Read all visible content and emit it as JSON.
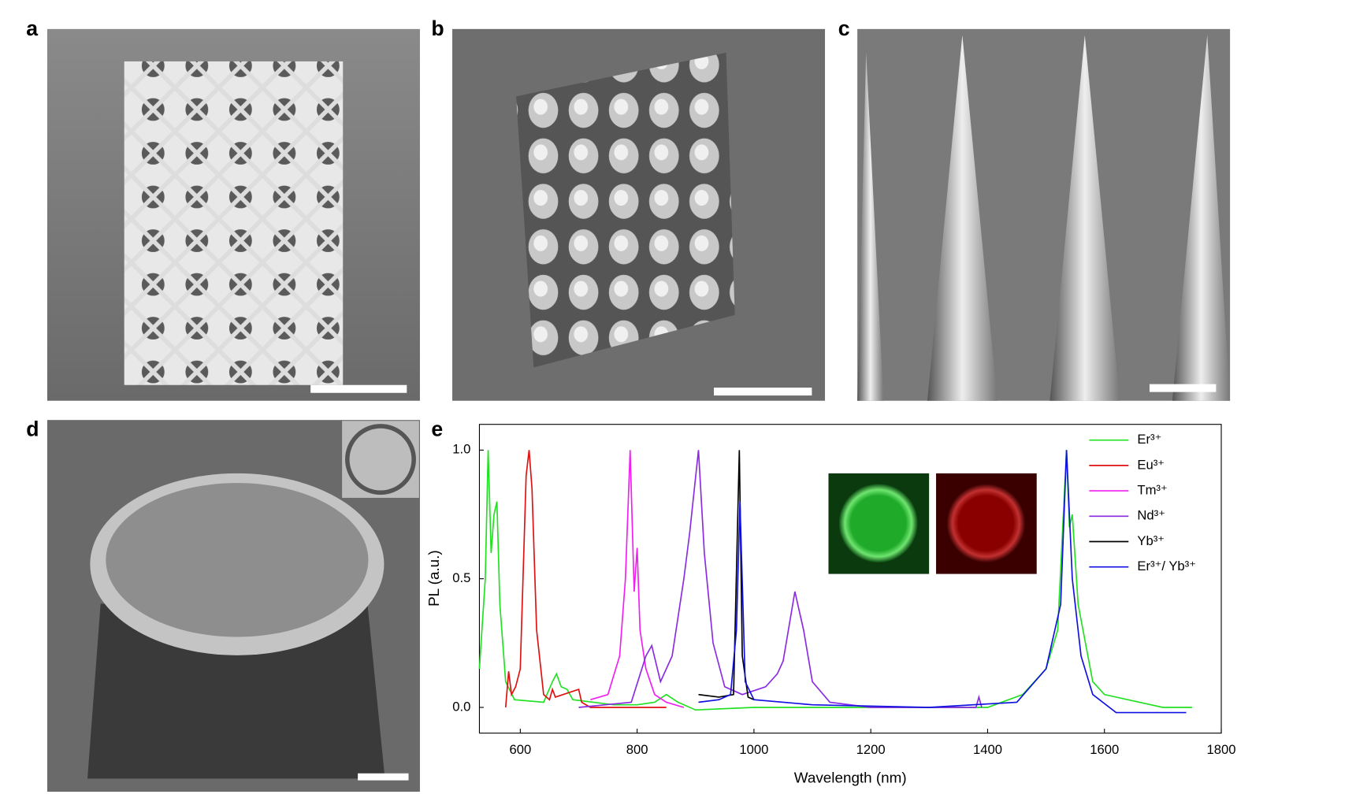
{
  "panels": [
    "a",
    "b",
    "c",
    "d",
    "e"
  ],
  "chart_data": {
    "type": "line",
    "xlabel": "Wavelength (nm)",
    "ylabel": "PL (a.u.)",
    "xlim": [
      530,
      1800
    ],
    "xticks": [
      600,
      800,
      1000,
      1200,
      1400,
      1600,
      1800
    ],
    "ylim": [
      -0.1,
      1.1
    ],
    "yticks": [
      {
        "value": 0,
        "label": "0.0"
      },
      {
        "value": 0.5,
        "label": "0.5"
      },
      {
        "value": 1,
        "label": "1.0"
      }
    ],
    "legend": "upper right",
    "series": [
      {
        "name": "Er³⁺",
        "color": "#22e022",
        "x": [
          530,
          540,
          545,
          550,
          555,
          560,
          565,
          575,
          590,
          640,
          655,
          662,
          670,
          680,
          690,
          760,
          800,
          830,
          850,
          870,
          900,
          1000,
          1200,
          1400,
          1460,
          1500,
          1520,
          1535,
          1540,
          1545,
          1555,
          1580,
          1600,
          1700,
          1750
        ],
        "values": [
          0.15,
          0.5,
          1.0,
          0.6,
          0.75,
          0.8,
          0.4,
          0.1,
          0.03,
          0.02,
          0.1,
          0.13,
          0.08,
          0.07,
          0.03,
          0.01,
          0.01,
          0.02,
          0.05,
          0.02,
          -0.01,
          0.0,
          0.0,
          0.0,
          0.05,
          0.15,
          0.3,
          1.0,
          0.7,
          0.75,
          0.4,
          0.1,
          0.05,
          0.0,
          0.0
        ]
      },
      {
        "name": "Eu³⁺",
        "color": "#e01010",
        "x": [
          575,
          580,
          585,
          592,
          600,
          610,
          615,
          620,
          628,
          640,
          650,
          655,
          660,
          700,
          705,
          720,
          850
        ],
        "values": [
          0.0,
          0.14,
          0.05,
          0.08,
          0.15,
          0.9,
          1.0,
          0.85,
          0.3,
          0.05,
          0.03,
          0.07,
          0.04,
          0.07,
          0.02,
          0.0,
          0.0
        ]
      },
      {
        "name": "Tm³⁺",
        "color": "#f020f0",
        "x": [
          720,
          750,
          770,
          780,
          788,
          795,
          800,
          805,
          815,
          830,
          850,
          880
        ],
        "values": [
          0.03,
          0.05,
          0.2,
          0.5,
          1.0,
          0.45,
          0.62,
          0.3,
          0.15,
          0.05,
          0.02,
          0.0
        ]
      },
      {
        "name": "Nd³⁺",
        "color": "#8a2be2",
        "x": [
          700,
          790,
          815,
          825,
          840,
          860,
          880,
          890,
          905,
          915,
          930,
          950,
          980,
          1020,
          1040,
          1050,
          1070,
          1085,
          1100,
          1130,
          1200,
          1380,
          1385,
          1390
        ],
        "values": [
          0.0,
          0.02,
          0.2,
          0.24,
          0.1,
          0.2,
          0.5,
          0.68,
          1.0,
          0.6,
          0.25,
          0.08,
          0.05,
          0.08,
          0.13,
          0.18,
          0.45,
          0.3,
          0.1,
          0.02,
          0.0,
          0.0,
          0.04,
          0.0
        ]
      },
      {
        "name": "Yb³⁺",
        "color": "#000000",
        "x": [
          905,
          940,
          965,
          975,
          980,
          990,
          1000
        ],
        "values": [
          0.05,
          0.04,
          0.05,
          1.0,
          0.2,
          0.04,
          0.03
        ]
      },
      {
        "name": "Er³⁺/ Yb³⁺",
        "color": "#1010e0",
        "x": [
          905,
          940,
          960,
          970,
          976,
          985,
          1000,
          1100,
          1300,
          1450,
          1500,
          1525,
          1535,
          1545,
          1560,
          1580,
          1620,
          1740
        ],
        "values": [
          0.02,
          0.03,
          0.05,
          0.3,
          0.8,
          0.1,
          0.03,
          0.01,
          0.0,
          0.02,
          0.15,
          0.4,
          1.0,
          0.5,
          0.2,
          0.05,
          -0.02,
          -0.02
        ]
      }
    ]
  }
}
